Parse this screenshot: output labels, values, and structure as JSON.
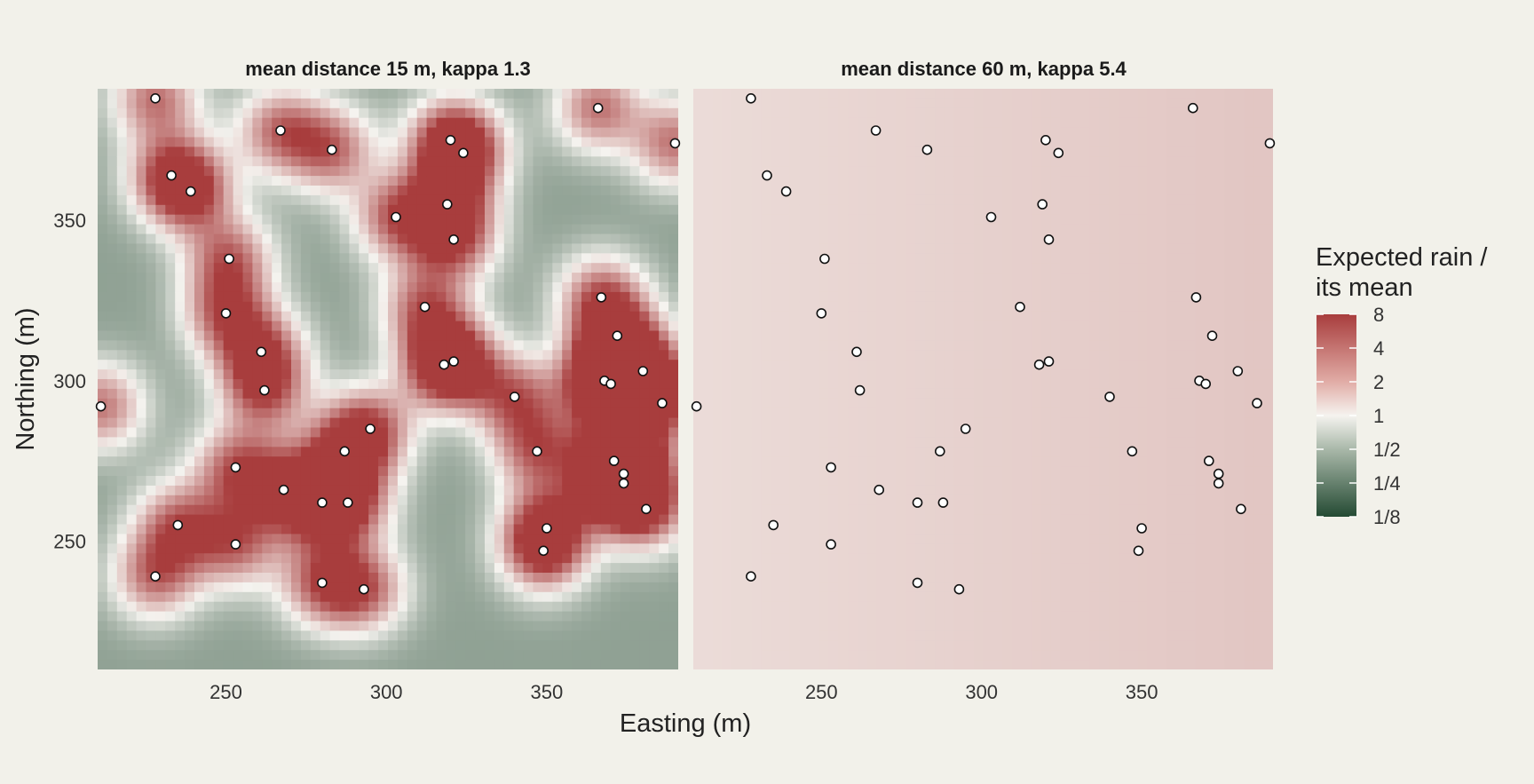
{
  "chart_data": {
    "type": "heatmap",
    "xlabel": "Easting (m)",
    "ylabel": "Northing (m)",
    "xlim": [
      210,
      391
    ],
    "ylim": [
      210,
      391
    ],
    "x_ticks": [
      250,
      300,
      350
    ],
    "y_ticks": [
      250,
      300,
      350
    ],
    "grid": false,
    "legend": {
      "title_lines": [
        "Expected rain /",
        "its mean"
      ],
      "placement": "right",
      "labels": [
        "8",
        "4",
        "2",
        "1",
        "1/2",
        "1/4",
        "1/8"
      ],
      "values": [
        8,
        4,
        2,
        1,
        0.5,
        0.25,
        0.125
      ]
    },
    "colors": {
      "high": "#a83d3d",
      "mid": "#f5f3ef",
      "low": "#244a33",
      "background": "#f2f1ea"
    },
    "panels": [
      {
        "title": "mean distance 15 m, kappa 1.3"
      },
      {
        "title": "mean distance 60 m, kappa 5.4"
      }
    ],
    "points": [
      {
        "x": 228,
        "y": 388
      },
      {
        "x": 366,
        "y": 385
      },
      {
        "x": 267,
        "y": 378
      },
      {
        "x": 320,
        "y": 375
      },
      {
        "x": 390,
        "y": 374
      },
      {
        "x": 283,
        "y": 372
      },
      {
        "x": 324,
        "y": 371
      },
      {
        "x": 233,
        "y": 364
      },
      {
        "x": 239,
        "y": 359
      },
      {
        "x": 319,
        "y": 355
      },
      {
        "x": 303,
        "y": 351
      },
      {
        "x": 321,
        "y": 344
      },
      {
        "x": 251,
        "y": 338
      },
      {
        "x": 367,
        "y": 326
      },
      {
        "x": 312,
        "y": 323
      },
      {
        "x": 250,
        "y": 321
      },
      {
        "x": 372,
        "y": 314
      },
      {
        "x": 261,
        "y": 309
      },
      {
        "x": 321,
        "y": 306
      },
      {
        "x": 318,
        "y": 305
      },
      {
        "x": 380,
        "y": 303
      },
      {
        "x": 368,
        "y": 300
      },
      {
        "x": 370,
        "y": 299
      },
      {
        "x": 211,
        "y": 292
      },
      {
        "x": 262,
        "y": 297
      },
      {
        "x": 340,
        "y": 295
      },
      {
        "x": 386,
        "y": 293
      },
      {
        "x": 295,
        "y": 285
      },
      {
        "x": 287,
        "y": 278
      },
      {
        "x": 347,
        "y": 278
      },
      {
        "x": 371,
        "y": 275
      },
      {
        "x": 253,
        "y": 273
      },
      {
        "x": 374,
        "y": 271
      },
      {
        "x": 374,
        "y": 268
      },
      {
        "x": 268,
        "y": 266
      },
      {
        "x": 280,
        "y": 262
      },
      {
        "x": 288,
        "y": 262
      },
      {
        "x": 381,
        "y": 260
      },
      {
        "x": 235,
        "y": 255
      },
      {
        "x": 350,
        "y": 254
      },
      {
        "x": 253,
        "y": 249
      },
      {
        "x": 349,
        "y": 247
      },
      {
        "x": 228,
        "y": 239
      },
      {
        "x": 280,
        "y": 237
      },
      {
        "x": 293,
        "y": 235
      }
    ]
  }
}
